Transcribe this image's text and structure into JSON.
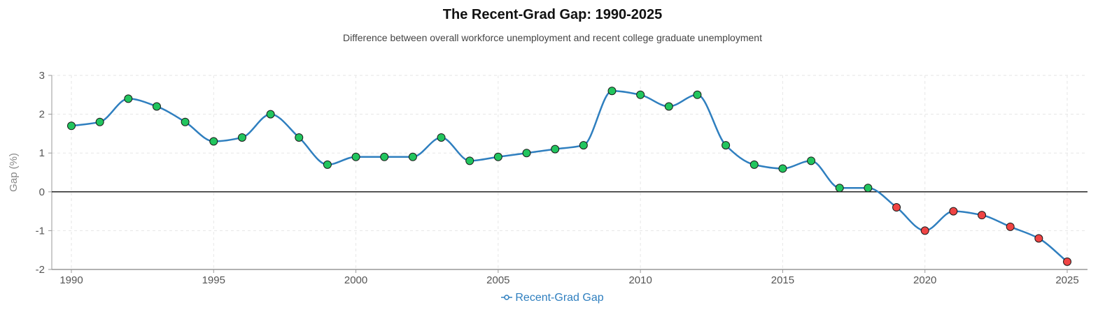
{
  "chart_data": {
    "type": "line",
    "title": "The Recent-Grad Gap: 1990-2025",
    "subtitle": "Difference between overall workforce unemployment and recent college graduate unemployment",
    "ylabel": "Gap (%)",
    "xlabel": "",
    "xlim": [
      1990,
      2025
    ],
    "ylim": [
      -2,
      3
    ],
    "x_ticks": [
      1990,
      1995,
      2000,
      2005,
      2010,
      2015,
      2020,
      2025
    ],
    "y_ticks": [
      -2,
      -1,
      0,
      1,
      2,
      3
    ],
    "grid": true,
    "zero_line": true,
    "legend": "bottom-center",
    "series": [
      {
        "name": "Recent-Grad Gap",
        "x": [
          1990,
          1991,
          1992,
          1993,
          1994,
          1995,
          1996,
          1997,
          1998,
          1999,
          2000,
          2001,
          2002,
          2003,
          2004,
          2005,
          2006,
          2007,
          2008,
          2009,
          2010,
          2011,
          2012,
          2013,
          2014,
          2015,
          2016,
          2017,
          2018,
          2019,
          2020,
          2021,
          2022,
          2023,
          2024,
          2025
        ],
        "values": [
          1.7,
          1.8,
          2.4,
          2.2,
          1.8,
          1.3,
          1.4,
          2.0,
          1.4,
          0.7,
          0.9,
          0.9,
          0.9,
          1.4,
          0.8,
          0.9,
          1.0,
          1.1,
          1.2,
          2.6,
          2.5,
          2.2,
          2.5,
          1.2,
          0.7,
          0.6,
          0.8,
          0.1,
          0.1,
          -0.4,
          -1.0,
          -0.5,
          -0.6,
          -0.9,
          -1.2,
          -1.8
        ]
      }
    ],
    "colors": {
      "line": "#2f7fbf",
      "positive_marker": "#22c55e",
      "negative_marker": "#ef4444",
      "marker_stroke": "#1a1a1a",
      "grid": "#e6e6e6",
      "zero_line": "#222222",
      "axis": "#999999"
    }
  }
}
